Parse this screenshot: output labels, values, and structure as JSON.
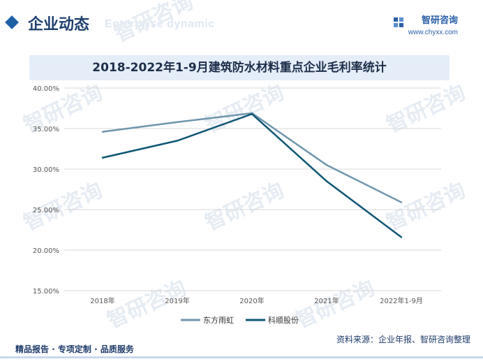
{
  "header": {
    "title": "企业动态",
    "subtitle_ghost": "Enterprise dynamic",
    "brand_name": "智研咨询",
    "brand_url": "www.chyxx.com"
  },
  "watermark": "智研咨询",
  "footer": {
    "left": "精品报告 · 专项定制 · 品质服务",
    "source": "资料来源：企业年报、智研咨询整理"
  },
  "colors": {
    "series1": "#6f95ad",
    "series2": "#0e5674",
    "grid": "#d9d9d9",
    "accent": "#1f5fa6"
  },
  "chart_data": {
    "type": "line",
    "title": "2018-2022年1-9月建筑防水材料重点企业毛利率统计",
    "categories": [
      "2018年",
      "2019年",
      "2020年",
      "2021年",
      "2022年1-9月"
    ],
    "series": [
      {
        "name": "东方雨虹",
        "values": [
          34.6,
          35.8,
          36.9,
          30.5,
          25.9
        ]
      },
      {
        "name": "科顺股份",
        "values": [
          31.4,
          33.5,
          36.8,
          28.5,
          21.6
        ]
      }
    ],
    "ylim": [
      15,
      40
    ],
    "yticks": [
      15,
      20,
      25,
      30,
      35,
      40
    ],
    "ytick_labels": [
      "15.00%",
      "20.00%",
      "25.00%",
      "30.00%",
      "35.00%",
      "40.00%"
    ],
    "grid": true,
    "legend_position": "bottom"
  }
}
